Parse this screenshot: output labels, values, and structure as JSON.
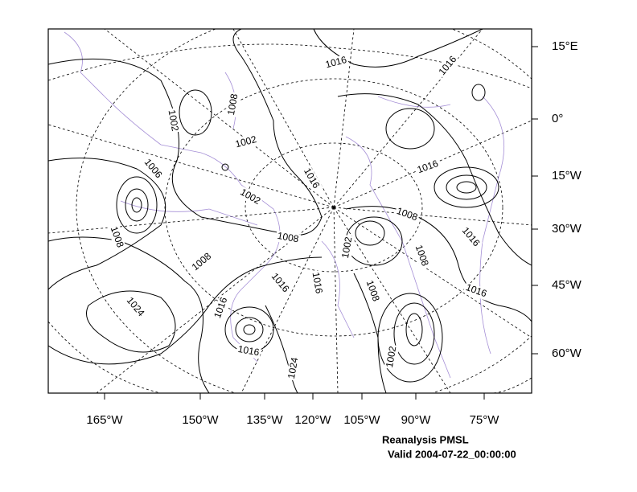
{
  "map": {
    "title": "Reanalysis PMSL",
    "valid": "Valid 2004-07-22_00:00:00",
    "lon_labels": [
      "165°W",
      "150°W",
      "135°W",
      "120°W",
      "105°W",
      "90°W",
      "75°W"
    ],
    "lat_labels": [
      "15°E",
      "0°",
      "15°W",
      "30°W",
      "45°W",
      "60°W"
    ],
    "contour_labels": [
      "1016",
      "1016",
      "1008",
      "1002",
      "1002",
      "1006",
      "1016",
      "1016",
      "1002",
      "1008",
      "1008",
      "1008",
      "1002",
      "1016",
      "1008",
      "1008",
      "1016",
      "1016",
      "1008",
      "1016",
      "1024",
      "1016",
      "1016",
      "1024",
      "1002"
    ]
  }
}
